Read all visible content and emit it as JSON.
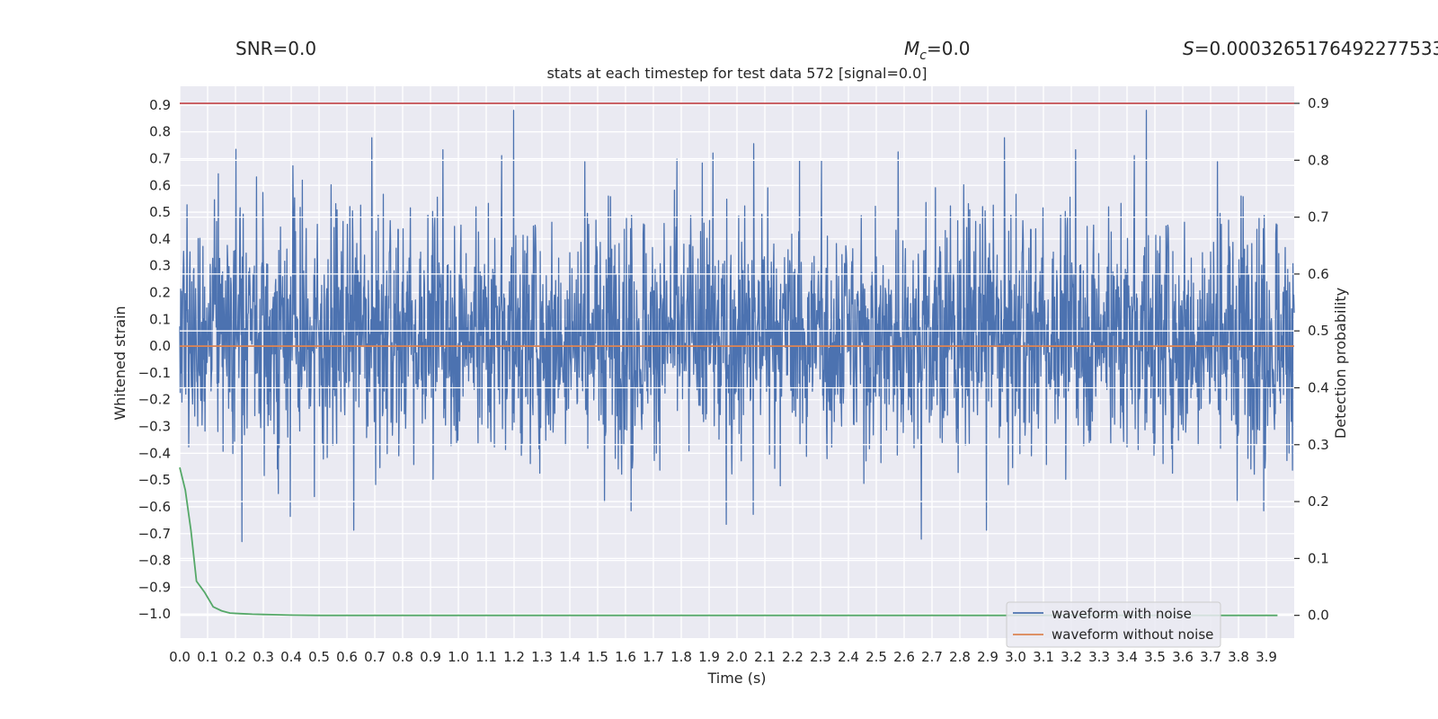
{
  "header": {
    "snr_label": "SNR=0.0",
    "mc_symbol": "M",
    "mc_subscript": "c",
    "mc_value": "=0.0",
    "s_symbol": "S",
    "s_value": "=0.0003265176492277533"
  },
  "chart_data": {
    "type": "line",
    "title": "stats at each timestep for test data 572 [signal=0.0]",
    "xlabel": "Time (s)",
    "ylabel": "Whitened strain",
    "y2label": "Detection probability",
    "xlim": [
      0.0,
      4.0
    ],
    "ylim": [
      -1.09,
      0.97
    ],
    "y2lim": [
      -0.04,
      0.93
    ],
    "x_ticks": [
      "0.0",
      "0.1",
      "0.2",
      "0.3",
      "0.4",
      "0.5",
      "0.6",
      "0.7",
      "0.8",
      "0.9",
      "1.0",
      "1.1",
      "1.2",
      "1.3",
      "1.4",
      "1.5",
      "1.6",
      "1.7",
      "1.8",
      "1.9",
      "2.0",
      "2.1",
      "2.2",
      "2.3",
      "2.4",
      "2.5",
      "2.6",
      "2.7",
      "2.8",
      "2.9",
      "3.0",
      "3.1",
      "3.2",
      "3.3",
      "3.4",
      "3.5",
      "3.6",
      "3.7",
      "3.8",
      "3.9"
    ],
    "y_ticks": [
      "0.9",
      "0.8",
      "0.7",
      "0.6",
      "0.5",
      "0.4",
      "0.3",
      "0.2",
      "0.1",
      "0.0",
      "−0.1",
      "−0.2",
      "−0.3",
      "−0.4",
      "−0.5",
      "−0.6",
      "−0.7",
      "−0.8",
      "−0.9",
      "−1.0"
    ],
    "y2_ticks": [
      "0.9",
      "0.8",
      "0.7",
      "0.6",
      "0.5",
      "0.4",
      "0.3",
      "0.2",
      "0.1",
      "0.0"
    ],
    "series": [
      {
        "name": "waveform with noise",
        "axis": "left",
        "color": "#4c72b0",
        "kind": "noise",
        "x_range": [
          0.0,
          4.0
        ],
        "approx_range": [
          -1.0,
          0.88
        ],
        "samples": 2600
      },
      {
        "name": "waveform without noise",
        "axis": "left",
        "color": "#dd8452",
        "x": [
          0.0,
          4.0
        ],
        "y": [
          0.0,
          0.0
        ]
      },
      {
        "name": "detection probability",
        "axis": "right",
        "color": "#55a868",
        "x": [
          0.0,
          0.02,
          0.04,
          0.06,
          0.09,
          0.12,
          0.15,
          0.18,
          0.22,
          0.26,
          0.3,
          0.35,
          0.4,
          0.5,
          0.7,
          1.0,
          2.0,
          3.0,
          3.94
        ],
        "y": [
          0.26,
          0.22,
          0.15,
          0.06,
          0.04,
          0.015,
          0.008,
          0.004,
          0.003,
          0.002,
          0.0015,
          0.001,
          0.0005,
          0.0,
          0.0,
          0.0,
          0.0,
          0.0,
          0.0
        ]
      },
      {
        "name": "threshold",
        "axis": "right",
        "color": "#c44e52",
        "x": [
          0.0,
          4.0
        ],
        "y": [
          0.9,
          0.9
        ]
      }
    ],
    "legend": {
      "position": "lower-right",
      "entries": [
        {
          "label": "waveform with noise",
          "color": "#4c72b0"
        },
        {
          "label": "waveform without noise",
          "color": "#dd8452"
        }
      ]
    },
    "grid": true,
    "style": {
      "axes_background": "#eaeaf2",
      "grid_color": "#ffffff"
    }
  }
}
